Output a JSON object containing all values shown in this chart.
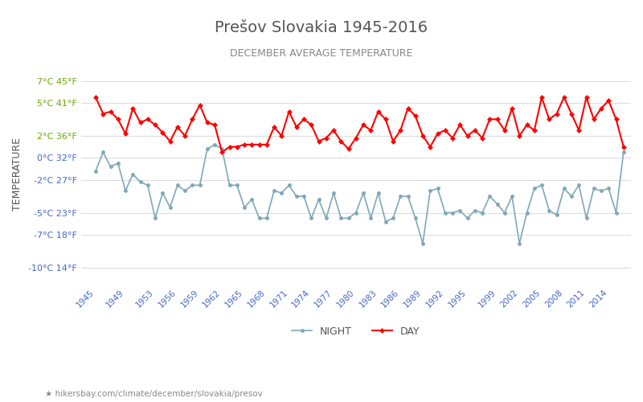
{
  "title": "Prešov Slovakia 1945-2016",
  "subtitle": "DECEMBER AVERAGE TEMPERATURE",
  "ylabel": "TEMPERATURE",
  "xlabel_url": "hikersbay.com/climate/december/slovakia/presov",
  "legend_night": "NIGHT",
  "legend_day": "DAY",
  "years": [
    1945,
    1946,
    1947,
    1948,
    1949,
    1950,
    1951,
    1952,
    1953,
    1954,
    1955,
    1956,
    1957,
    1958,
    1959,
    1960,
    1961,
    1962,
    1963,
    1964,
    1965,
    1966,
    1967,
    1968,
    1969,
    1970,
    1971,
    1972,
    1973,
    1974,
    1975,
    1976,
    1977,
    1978,
    1979,
    1980,
    1981,
    1982,
    1983,
    1984,
    1985,
    1986,
    1987,
    1988,
    1989,
    1990,
    1991,
    1992,
    1993,
    1994,
    1995,
    1996,
    1997,
    1998,
    1999,
    2000,
    2001,
    2002,
    2003,
    2004,
    2005,
    2006,
    2007,
    2008,
    2009,
    2010,
    2011,
    2012,
    2013,
    2014,
    2015,
    2016
  ],
  "day": [
    5.5,
    4.0,
    4.2,
    3.5,
    2.2,
    4.5,
    3.2,
    3.5,
    3.0,
    2.3,
    1.5,
    2.8,
    2.0,
    3.5,
    4.8,
    3.2,
    3.0,
    0.5,
    1.0,
    1.0,
    1.2,
    1.2,
    1.2,
    1.2,
    2.8,
    2.0,
    4.2,
    2.8,
    3.5,
    3.0,
    1.5,
    1.8,
    2.5,
    1.5,
    0.8,
    1.8,
    3.0,
    2.5,
    4.2,
    3.5,
    1.5,
    2.5,
    4.5,
    3.8,
    2.0,
    1.0,
    2.2,
    2.5,
    1.8,
    3.0,
    2.0,
    2.5,
    1.8,
    3.5,
    3.5,
    2.5,
    4.5,
    2.0,
    3.0,
    2.5,
    5.5,
    3.5,
    4.0,
    5.5,
    4.0,
    2.5,
    5.5,
    3.5,
    4.5,
    5.2,
    3.5,
    1.0
  ],
  "night": [
    -1.2,
    0.5,
    -0.8,
    -0.5,
    -3.0,
    -1.5,
    -2.2,
    -2.5,
    -5.5,
    -3.2,
    -4.5,
    -2.5,
    -3.0,
    -2.5,
    -2.5,
    0.8,
    1.2,
    0.8,
    -2.5,
    -2.5,
    -4.5,
    -3.8,
    -5.5,
    -5.5,
    -3.0,
    -3.2,
    -2.5,
    -3.5,
    -3.5,
    -5.5,
    -3.8,
    -5.5,
    -3.2,
    -5.5,
    -5.5,
    -5.0,
    -3.2,
    -5.5,
    -3.2,
    -5.8,
    -5.5,
    -3.5,
    -3.5,
    -5.5,
    -7.8,
    -3.0,
    -2.8,
    -5.0,
    -5.0,
    -4.8,
    -5.5,
    -4.8,
    -5.0,
    -3.5,
    -4.2,
    -5.0,
    -3.5,
    -7.8,
    -5.0,
    -2.8,
    -2.5,
    -4.8,
    -5.2,
    -2.8,
    -3.5,
    -2.5,
    -5.5,
    -2.8,
    -3.0,
    -2.8,
    -5.0,
    0.5
  ],
  "yticks_c": [
    7,
    5,
    2,
    0,
    -2,
    -5,
    -7,
    -10
  ],
  "yticks_f": [
    45,
    41,
    36,
    32,
    27,
    23,
    18,
    14
  ],
  "xticks": [
    1945,
    1949,
    1953,
    1956,
    1959,
    1962,
    1965,
    1968,
    1971,
    1974,
    1977,
    1980,
    1983,
    1986,
    1989,
    1992,
    1995,
    1999,
    2002,
    2005,
    2008,
    2011,
    2014
  ],
  "day_color": "#ff0000",
  "night_color": "#7fa8b8",
  "title_color": "#555555",
  "subtitle_color": "#888888",
  "axis_label_color_green": "#66aa00",
  "axis_label_color_blue": "#4466cc",
  "grid_color": "#dddddd",
  "bg_color": "#ffffff",
  "url_color": "#888888"
}
